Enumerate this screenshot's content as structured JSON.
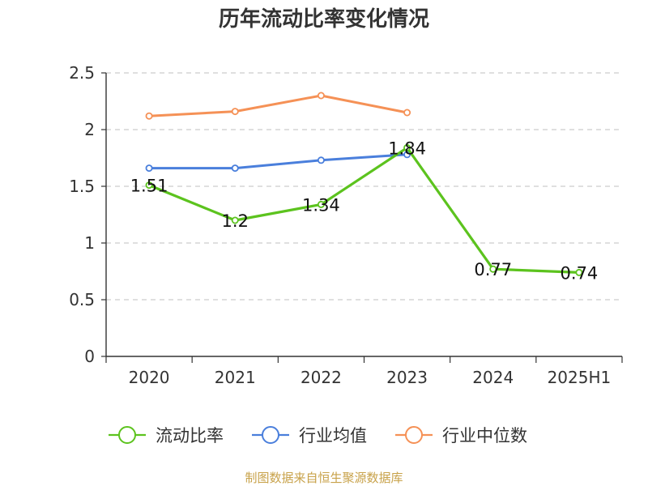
{
  "chart_data": {
    "type": "line",
    "title": "历年流动比率变化情况",
    "categories": [
      "2020",
      "2021",
      "2022",
      "2023",
      "2024",
      "2025H1"
    ],
    "ylim": [
      0,
      2.5
    ],
    "yticks": [
      "0",
      "0.5",
      "1",
      "1.5",
      "2",
      "2.5"
    ],
    "grid": true,
    "legend_position": "bottom",
    "series": [
      {
        "name": "流动比率",
        "color": "#5cc31e",
        "values": [
          1.51,
          1.2,
          1.34,
          1.84,
          0.77,
          0.74
        ],
        "labels": [
          "1.51",
          "1.2",
          "1.34",
          "1.84",
          "0.77",
          "0.74"
        ]
      },
      {
        "name": "行业均值",
        "color": "#4a7fdc",
        "values": [
          1.66,
          1.66,
          1.73,
          1.78,
          null,
          null
        ]
      },
      {
        "name": "行业中位数",
        "color": "#f59156",
        "values": [
          2.12,
          2.16,
          2.3,
          2.15,
          null,
          null
        ]
      }
    ],
    "source": "制图数据来自恒生聚源数据库"
  }
}
